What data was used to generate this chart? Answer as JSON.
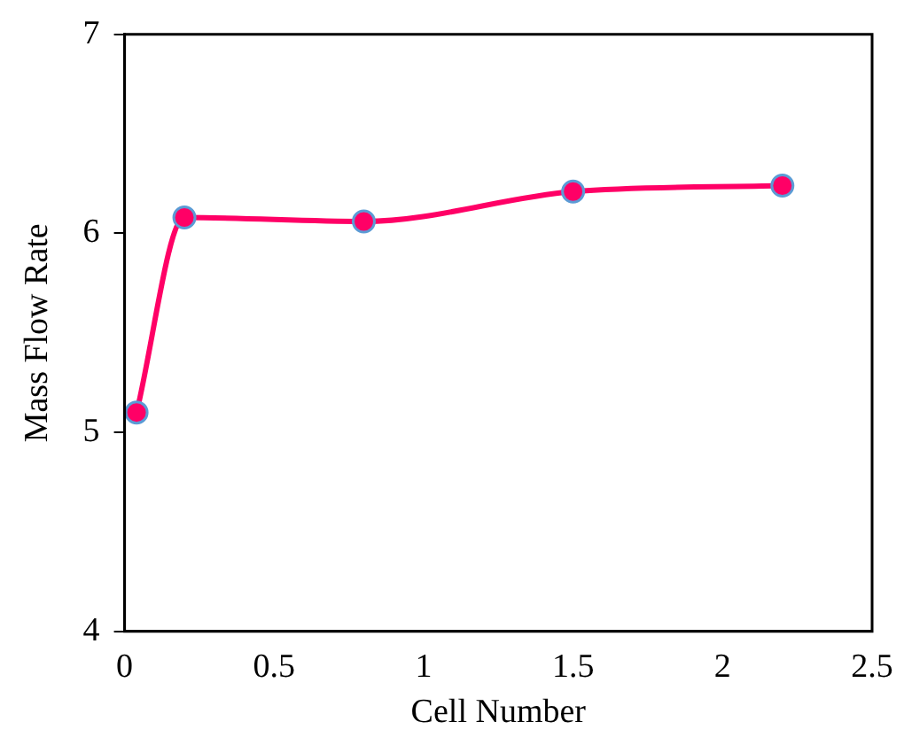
{
  "chart_data": {
    "type": "line",
    "xlabel": "Cell Number",
    "ylabel": "Mass Flow Rate",
    "x": [
      0.04,
      0.2,
      0.8,
      1.5,
      2.2
    ],
    "series": [
      {
        "color": "#ff0066",
        "values": [
          5.1,
          6.08,
          6.06,
          6.21,
          6.24
        ]
      }
    ],
    "xlim": [
      0,
      2.5
    ],
    "xticks": [
      0,
      0.5,
      1,
      1.5,
      2,
      2.5
    ],
    "ylim": [
      4,
      7
    ],
    "yticks": [
      4,
      5,
      6,
      7
    ],
    "grid": false,
    "legend": false,
    "marker": "circle",
    "line_style": "solid"
  }
}
